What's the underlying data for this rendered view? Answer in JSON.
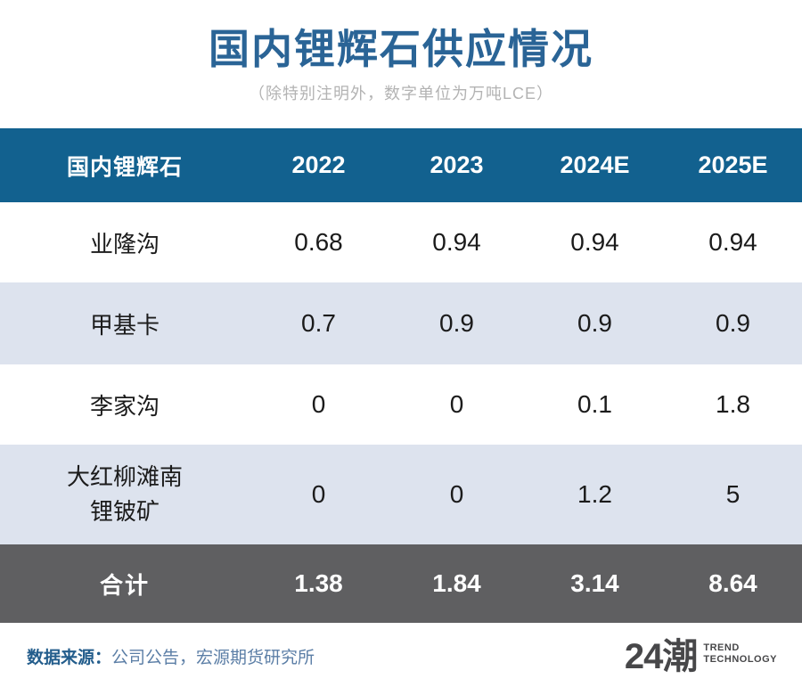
{
  "page": {
    "title": "国内锂辉石供应情况",
    "subtitle": "（除特别注明外，数字单位为万吨LCE）"
  },
  "table": {
    "header": [
      "国内锂辉石",
      "2022",
      "2023",
      "2024E",
      "2025E"
    ],
    "rows": [
      {
        "label": "业隆沟",
        "values": [
          "0.68",
          "0.94",
          "0.94",
          "0.94"
        ]
      },
      {
        "label": "甲基卡",
        "values": [
          "0.7",
          "0.9",
          "0.9",
          "0.9"
        ]
      },
      {
        "label": "李家沟",
        "values": [
          "0",
          "0",
          "0.1",
          "1.8"
        ]
      },
      {
        "label": "大红柳滩南锂铍矿",
        "values": [
          "0",
          "0",
          "1.2",
          "5"
        ]
      }
    ],
    "total": {
      "label": "合计",
      "values": [
        "1.38",
        "1.84",
        "3.14",
        "8.64"
      ]
    }
  },
  "footer": {
    "source_label": "数据来源：",
    "source_value": "公司公告，宏源期货研究所",
    "logo_text": "24潮",
    "logo_sub1": "TREND",
    "logo_sub2": "TECHNOLOGY"
  },
  "colors": {
    "title_text": "#2a6496",
    "header_bg": "#12618f",
    "header_text": "#ffffff",
    "row_alt_bg": "#dde3ee",
    "total_bg": "#5f5f61",
    "total_text": "#ffffff",
    "subtitle_text": "#b3b3b3",
    "source_label_text": "#235d8c",
    "source_value_text": "#5b7ea6",
    "logo_text_color": "#474749"
  },
  "chart_data": {
    "type": "table",
    "title": "国内锂辉石供应情况",
    "subtitle": "（除特别注明外，数字单位为万吨LCE）",
    "unit": "万吨LCE",
    "categories": [
      "2022",
      "2023",
      "2024E",
      "2025E"
    ],
    "series": [
      {
        "name": "业隆沟",
        "values": [
          0.68,
          0.94,
          0.94,
          0.94
        ]
      },
      {
        "name": "甲基卡",
        "values": [
          0.7,
          0.9,
          0.9,
          0.9
        ]
      },
      {
        "name": "李家沟",
        "values": [
          0,
          0,
          0.1,
          1.8
        ]
      },
      {
        "name": "大红柳滩南锂铍矿",
        "values": [
          0,
          0,
          1.2,
          5
        ]
      },
      {
        "name": "合计",
        "values": [
          1.38,
          1.84,
          3.14,
          8.64
        ]
      }
    ],
    "source": "公司公告，宏源期货研究所"
  }
}
